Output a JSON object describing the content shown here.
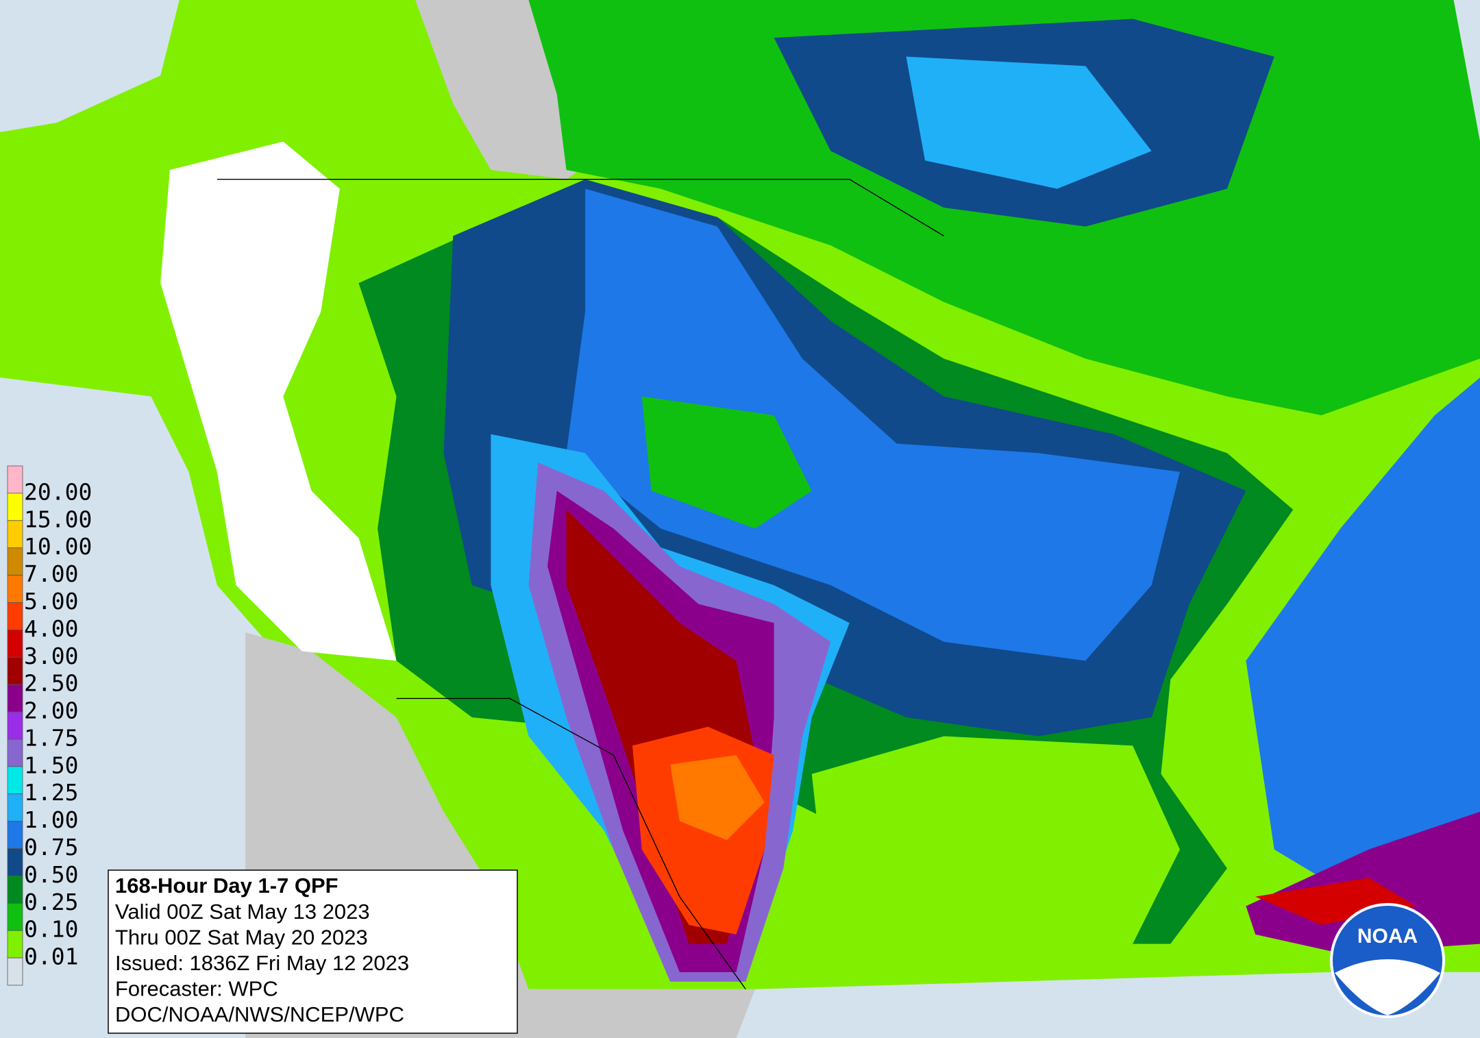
{
  "legend": {
    "colors": [
      "#ffb6c8",
      "#ffff00",
      "#ffcc00",
      "#d08a00",
      "#ff7800",
      "#ff3c00",
      "#d40000",
      "#a00000",
      "#8b008b",
      "#9a2ee8",
      "#8866d0",
      "#00e8e8",
      "#20b0f8",
      "#1e78e8",
      "#104a8a",
      "#008a20",
      "#10c010",
      "#80f000",
      "#d8e0e8"
    ],
    "labels": [
      "20.00",
      "15.00",
      "10.00",
      "7.00",
      "5.00",
      "4.00",
      "3.00",
      "2.50",
      "2.00",
      "1.75",
      "1.50",
      "1.25",
      "1.00",
      "0.75",
      "0.50",
      "0.25",
      "0.10",
      "0.01"
    ]
  },
  "info": {
    "title": "168-Hour Day 1-7 QPF",
    "lines": [
      "Valid 00Z Sat May 13 2023",
      "Thru 00Z Sat May 20 2023",
      "Issued: 1836Z Fri May 12 2023",
      "Forecaster: WPC",
      "DOC/NOAA/NWS/NCEP/WPC"
    ]
  },
  "logo": {
    "text": "NOAA"
  }
}
